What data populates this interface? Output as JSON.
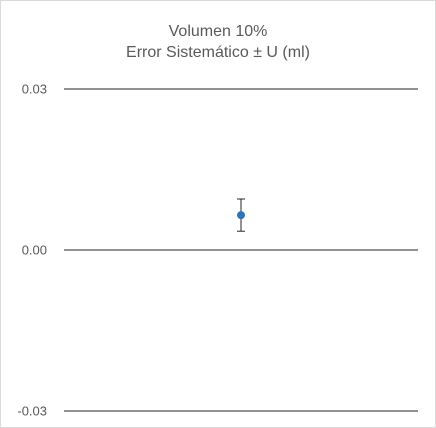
{
  "chart_data": {
    "type": "scatter",
    "title_line1": "Volumen 10%",
    "title_line2": "Error Sistemático ± U (ml)",
    "xlabel": "",
    "ylabel": "",
    "ylim": [
      -0.03,
      0.03
    ],
    "yticks": [
      {
        "value": 0.03,
        "label": "0.03"
      },
      {
        "value": 0.0,
        "label": "0.00"
      },
      {
        "value": -0.03,
        "label": "-0.03"
      }
    ],
    "grid": true,
    "points": [
      {
        "x": 1,
        "y": 0.0065,
        "err_low": 0.0035,
        "err_high": 0.0095
      }
    ],
    "xlim": [
      0,
      2
    ],
    "colors": {
      "marker": "#2e75b6",
      "gridline": "#262626",
      "errorbar": "#262626"
    }
  }
}
